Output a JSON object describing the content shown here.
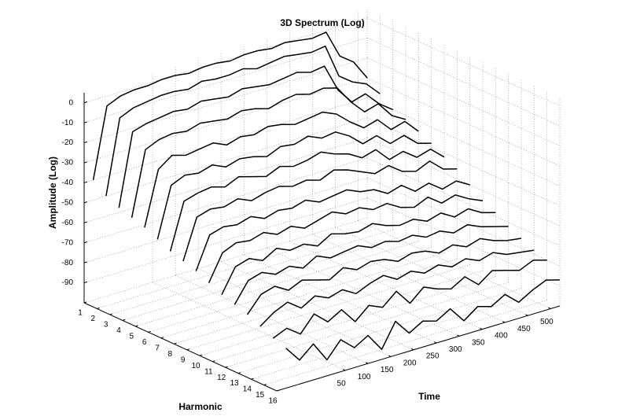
{
  "chart_data": {
    "type": "waterfall3d",
    "title": "3D Spectrum (Log)",
    "xlabel": "Harmonic",
    "ylabel": "Time",
    "zlabel": "Amplitude (Log)",
    "xlim": [
      1,
      16
    ],
    "xticks": [
      1,
      2,
      3,
      4,
      5,
      6,
      7,
      8,
      9,
      10,
      11,
      12,
      13,
      14,
      15,
      16
    ],
    "ylim": [
      -100,
      520
    ],
    "yticks": [
      50,
      100,
      150,
      200,
      250,
      300,
      350,
      400,
      450,
      500
    ],
    "zlim": [
      -100,
      5
    ],
    "zticks": [
      -90,
      -80,
      -70,
      -60,
      -50,
      -40,
      -30,
      -20,
      -10,
      0
    ],
    "grid": true,
    "x": [
      -80,
      -50,
      -20,
      10,
      40,
      70,
      100,
      130,
      160,
      190,
      220,
      250,
      280,
      310,
      340,
      370,
      400,
      430,
      460,
      490,
      520
    ],
    "series": [
      {
        "color": "#000000",
        "values": [
          -40,
          -5,
          -2,
          -1,
          -1,
          0,
          0,
          -1,
          0,
          0,
          -1,
          0,
          0,
          -1,
          0,
          -1,
          -2,
          -1,
          -15,
          -20,
          -30
        ]
      },
      {
        "color": "#000000",
        "values": [
          -45,
          -8,
          -5,
          -4,
          -3,
          -3,
          -4,
          -2,
          -3,
          -3,
          -2,
          -4,
          -3,
          -2,
          -3,
          -4,
          -3,
          -20,
          -25,
          -28,
          -35
        ]
      },
      {
        "color": "#000000",
        "values": [
          -48,
          -12,
          -10,
          -9,
          -8,
          -9,
          -7,
          -8,
          -9,
          -7,
          -8,
          -9,
          -8,
          -7,
          -9,
          -8,
          -22,
          -30,
          -28,
          -35,
          -40
        ]
      },
      {
        "color": "#000000",
        "values": [
          -50,
          -18,
          -15,
          -14,
          -15,
          -13,
          -14,
          -15,
          -13,
          -14,
          -16,
          -14,
          -13,
          -15,
          -14,
          -16,
          -25,
          -32,
          -30,
          -38,
          -42
        ]
      },
      {
        "color": "#000000",
        "values": [
          -52,
          -25,
          -20,
          -22,
          -21,
          -20,
          -23,
          -21,
          -22,
          -20,
          -21,
          -23,
          -22,
          -21,
          -24,
          -30,
          -35,
          -33,
          -40,
          -38,
          -45
        ]
      },
      {
        "color": "#000000",
        "values": [
          -55,
          -30,
          -27,
          -28,
          -26,
          -29,
          -27,
          -28,
          -30,
          -27,
          -28,
          -26,
          -29,
          -28,
          -32,
          -38,
          -36,
          -42,
          -40,
          -46,
          -48
        ]
      },
      {
        "color": "#000000",
        "values": [
          -58,
          -35,
          -33,
          -32,
          -34,
          -31,
          -33,
          -35,
          -32,
          -34,
          -33,
          -31,
          -34,
          -36,
          -40,
          -38,
          -45,
          -43,
          -48,
          -46,
          -52
        ]
      },
      {
        "color": "#000000",
        "values": [
          -60,
          -40,
          -38,
          -39,
          -37,
          -40,
          -38,
          -37,
          -39,
          -38,
          -40,
          -37,
          -39,
          -42,
          -45,
          -43,
          -48,
          -50,
          -47,
          -53,
          -55
        ]
      },
      {
        "color": "#000000",
        "values": [
          -62,
          -46,
          -44,
          -45,
          -43,
          -46,
          -44,
          -45,
          -43,
          -46,
          -45,
          -44,
          -47,
          -48,
          -52,
          -50,
          -55,
          -53,
          -58,
          -56,
          -60
        ]
      },
      {
        "color": "#000000",
        "values": [
          -65,
          -52,
          -49,
          -50,
          -48,
          -51,
          -49,
          -52,
          -50,
          -48,
          -51,
          -50,
          -53,
          -52,
          -56,
          -58,
          -55,
          -60,
          -58,
          -62,
          -65
        ]
      },
      {
        "color": "#000000",
        "values": [
          -68,
          -56,
          -54,
          -57,
          -53,
          -56,
          -55,
          -58,
          -54,
          -56,
          -57,
          -55,
          -58,
          -60,
          -59,
          -62,
          -60,
          -64,
          -62,
          -66,
          -68
        ]
      },
      {
        "color": "#000000",
        "values": [
          -70,
          -60,
          -58,
          -61,
          -59,
          -62,
          -58,
          -61,
          -60,
          -59,
          -62,
          -61,
          -63,
          -62,
          -65,
          -64,
          -67,
          -65,
          -68,
          -70,
          -72
        ]
      },
      {
        "color": "#000000",
        "values": [
          -72,
          -64,
          -62,
          -66,
          -63,
          -65,
          -67,
          -63,
          -66,
          -64,
          -65,
          -68,
          -66,
          -67,
          -70,
          -68,
          -71,
          -69,
          -72,
          -74,
          -75
        ]
      },
      {
        "color": "#000000",
        "values": [
          -75,
          -70,
          -67,
          -72,
          -68,
          -71,
          -69,
          -73,
          -70,
          -68,
          -72,
          -70,
          -73,
          -71,
          -74,
          -72,
          -75,
          -73,
          -76,
          -77,
          -78
        ]
      },
      {
        "color": "#000000",
        "values": [
          -78,
          -75,
          -80,
          -72,
          -78,
          -74,
          -82,
          -76,
          -79,
          -73,
          -81,
          -75,
          -78,
          -80,
          -76,
          -82,
          -77,
          -79,
          -81,
          -78,
          -80
        ]
      },
      {
        "color": "#000000",
        "values": [
          -80,
          -88,
          -82,
          -92,
          -84,
          -90,
          -86,
          -95,
          -83,
          -91,
          -87,
          -89,
          -85,
          -93,
          -88,
          -90,
          -86,
          -92,
          -88,
          -85,
          -87
        ]
      }
    ]
  }
}
